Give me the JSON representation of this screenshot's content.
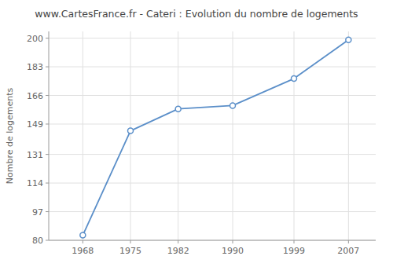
{
  "chart_data": {
    "type": "line",
    "title": "www.CartesFrance.fr - Cateri : Evolution du nombre de logements",
    "ylabel": "Nombre de logements",
    "x": [
      1968,
      1975,
      1982,
      1990,
      1999,
      2007
    ],
    "values": [
      83,
      145,
      158,
      160,
      176,
      199
    ],
    "xlim": [
      1963,
      2011
    ],
    "ylim": [
      80,
      204
    ],
    "xticks": [
      1968,
      1975,
      1982,
      1990,
      1999,
      2007
    ],
    "yticks": [
      80,
      97,
      114,
      131,
      149,
      166,
      183,
      200
    ],
    "color": "#5b8fc9",
    "marker": "circle",
    "grid": true
  }
}
